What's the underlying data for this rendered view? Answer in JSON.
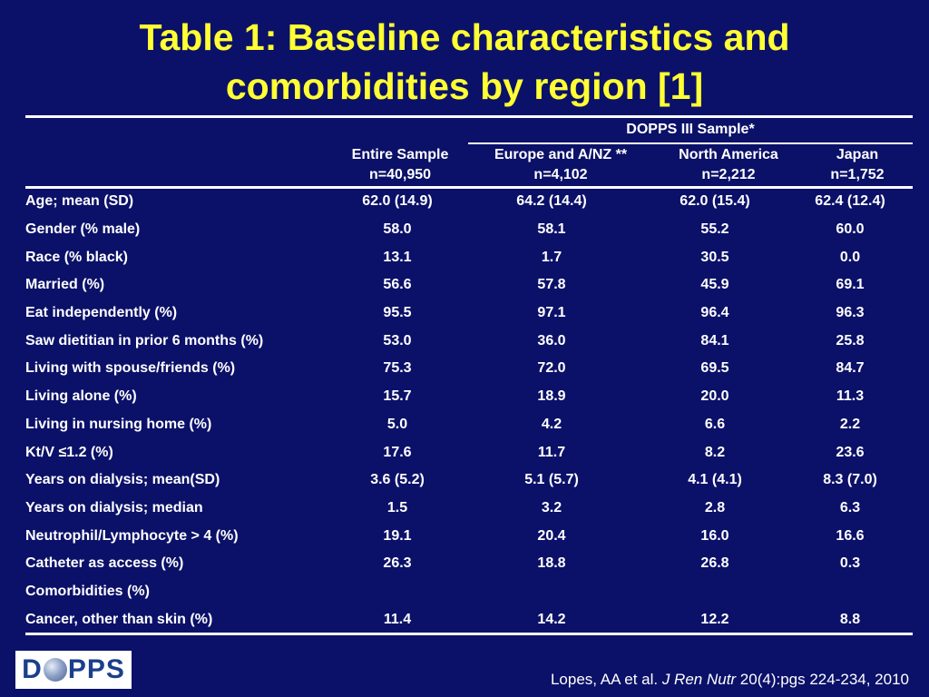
{
  "title_line1": "Table 1: Baseline characteristics and",
  "title_line2": "comorbidities by region [1]",
  "group_header": "DOPPS III Sample*",
  "columns": [
    {
      "name": "Entire Sample",
      "n": "n=40,950"
    },
    {
      "name": "Europe and A/NZ **",
      "n": "n=4,102"
    },
    {
      "name": "North America",
      "n": "n=2,212"
    },
    {
      "name": "Japan",
      "n": "n=1,752"
    }
  ],
  "rows": [
    {
      "label": "Age; mean (SD)",
      "v": [
        "62.0 (14.9)",
        "64.2 (14.4)",
        "62.0 (15.4)",
        "62.4 (12.4)"
      ]
    },
    {
      "label": "Gender (% male)",
      "v": [
        "58.0",
        "58.1",
        "55.2",
        "60.0"
      ]
    },
    {
      "label": "Race (% black)",
      "v": [
        "13.1",
        "1.7",
        "30.5",
        "0.0"
      ]
    },
    {
      "label": "Married (%)",
      "v": [
        "56.6",
        "57.8",
        "45.9",
        "69.1"
      ]
    },
    {
      "label": "Eat independently (%)",
      "v": [
        "95.5",
        "97.1",
        "96.4",
        "96.3"
      ]
    },
    {
      "label": "Saw dietitian in prior 6 months (%)",
      "v": [
        "53.0",
        "36.0",
        "84.1",
        "25.8"
      ]
    },
    {
      "label": "Living with spouse/friends (%)",
      "v": [
        "75.3",
        "72.0",
        "69.5",
        "84.7"
      ]
    },
    {
      "label": "Living alone (%)",
      "v": [
        "15.7",
        "18.9",
        "20.0",
        "11.3"
      ]
    },
    {
      "label": "Living in nursing home (%)",
      "v": [
        "5.0",
        "4.2",
        "6.6",
        "2.2"
      ]
    },
    {
      "label": "Kt/V ≤1.2  (%)",
      "v": [
        "17.6",
        "11.7",
        "8.2",
        "23.6"
      ]
    },
    {
      "label": "Years on dialysis; mean(SD)",
      "v": [
        "3.6 (5.2)",
        "5.1 (5.7)",
        "4.1 (4.1)",
        "8.3 (7.0)"
      ]
    },
    {
      "label": "Years on dialysis; median",
      "v": [
        "1.5",
        "3.2",
        "2.8",
        "6.3"
      ]
    },
    {
      "label": "Neutrophil/Lymphocyte > 4 (%)",
      "v": [
        "19.1",
        "20.4",
        "16.0",
        "16.6"
      ]
    },
    {
      "label": "Catheter as access (%)",
      "v": [
        "26.3",
        "18.8",
        "26.8",
        "0.3"
      ]
    },
    {
      "label": "Comorbidities (%)",
      "v": [
        "",
        "",
        "",
        ""
      ]
    },
    {
      "label": "Cancer, other than skin (%)",
      "v": [
        "11.4",
        "14.2",
        "12.2",
        "8.8"
      ],
      "indent": true
    }
  ],
  "logo": {
    "left": "D",
    "right": "PPS"
  },
  "citation": {
    "authors": "Lopes, AA et al. ",
    "journal": "J Ren Nutr",
    "rest": " 20(4):pgs 224-234, 2010"
  },
  "colors": {
    "background": "#0b1168",
    "title": "#ffff33",
    "text": "#ffffff"
  }
}
